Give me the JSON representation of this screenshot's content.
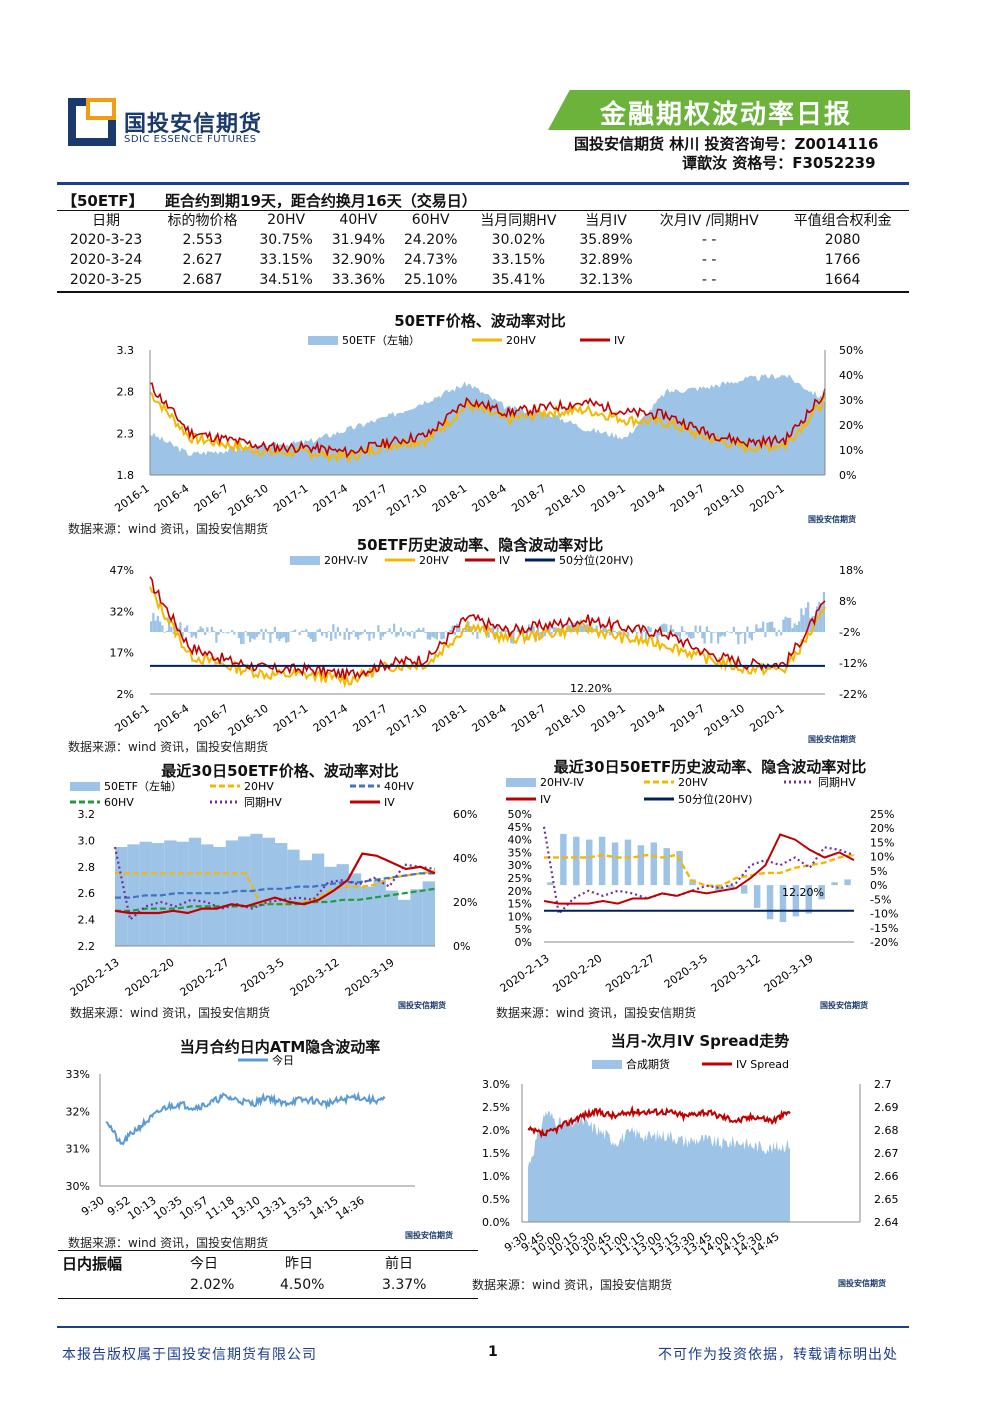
{
  "header": {
    "logo_cn": "国投安信期货",
    "logo_en": "SDIC ESSENCE FUTURES",
    "title": "金融期权波动率日报",
    "author_line1": "国投安信期货  林川  投资咨询号：Z0014116",
    "author_line2": "谭歆汝      资格号：F3052239"
  },
  "etf_table": {
    "tag": "【50ETF】",
    "subtitle": "距合约到期19天，距合约换月16天（交易日）",
    "columns": [
      "日期",
      "标的物价格",
      "20HV",
      "40HV",
      "60HV",
      "当月同期HV",
      "当月IV",
      "次月IV /同期HV",
      "平值组合权利金"
    ],
    "rows": [
      [
        "2020-3-23",
        "2.553",
        "30.75%",
        "31.94%",
        "24.20%",
        "30.02%",
        "35.89%",
        "-      -",
        "2080"
      ],
      [
        "2020-3-24",
        "2.627",
        "33.15%",
        "32.90%",
        "24.73%",
        "33.15%",
        "32.89%",
        "-      -",
        "1766"
      ],
      [
        "2020-3-25",
        "2.687",
        "34.51%",
        "33.36%",
        "25.10%",
        "35.41%",
        "32.13%",
        "-      -",
        "1664"
      ]
    ]
  },
  "colors": {
    "bar": "#9dc3e6",
    "orange": "#f5b800",
    "red": "#c00000",
    "navy": "#002060",
    "blue": "#4472c4",
    "green": "#1f9d3a",
    "purple": "#7030a0",
    "banner": "#6bb33a"
  },
  "source_text": "数据来源：wind 资讯，国投安信期货",
  "charts": {
    "c1": {
      "title": "50ETF价格、波动率对比",
      "legend": [
        "50ETF（左轴）",
        "20HV",
        "IV"
      ],
      "yleft": [
        "3.3",
        "2.8",
        "2.3",
        "1.8"
      ],
      "yright": [
        "50%",
        "40%",
        "30%",
        "20%",
        "10%",
        "0%"
      ],
      "xticks": [
        "2016-1",
        "2016-4",
        "2016-7",
        "2016-10",
        "2017-1",
        "2017-4",
        "2017-7",
        "2017-10",
        "2018-1",
        "2018-4",
        "2018-7",
        "2018-10",
        "2019-1",
        "2019-4",
        "2019-7",
        "2019-10",
        "2020-1"
      ]
    },
    "c2": {
      "title": "50ETF历史波动率、隐含波动率对比",
      "legend": [
        "20HV-IV",
        "20HV",
        "IV",
        "50分位(20HV)"
      ],
      "yleft": [
        "47%",
        "32%",
        "17%",
        "2%"
      ],
      "yright": [
        "18%",
        "8%",
        "-2%",
        "-12%",
        "-22%"
      ],
      "annotation": "12.20%",
      "xticks": [
        "2016-1",
        "2016-4",
        "2016-7",
        "2016-10",
        "2017-1",
        "2017-4",
        "2017-7",
        "2017-10",
        "2018-1",
        "2018-4",
        "2018-7",
        "2018-10",
        "2019-1",
        "2019-4",
        "2019-7",
        "2019-10",
        "2020-1"
      ]
    },
    "c3": {
      "title": "最近30日50ETF价格、波动率对比",
      "legend": [
        "50ETF（左轴）",
        "20HV",
        "40HV",
        "60HV",
        "同期HV",
        "IV"
      ],
      "yleft": [
        "3.2",
        "3.0",
        "2.8",
        "2.6",
        "2.4",
        "2.2"
      ],
      "yright": [
        "60%",
        "40%",
        "20%",
        "0%"
      ],
      "xticks": [
        "2020-2-13",
        "2020-2-20",
        "2020-2-27",
        "2020-3-5",
        "2020-3-12",
        "2020-3-19"
      ]
    },
    "c4": {
      "title": "最近30日50ETF历史波动率、隐含波动率对比",
      "legend": [
        "20HV-IV",
        "20HV",
        "同期HV",
        "IV",
        "50分位(20HV)"
      ],
      "yleft": [
        "50%",
        "45%",
        "40%",
        "35%",
        "30%",
        "25%",
        "20%",
        "15%",
        "10%",
        "5%",
        "0%"
      ],
      "yright": [
        "25%",
        "20%",
        "15%",
        "10%",
        "5%",
        "0%",
        "-5%",
        "-10%",
        "-15%",
        "-20%"
      ],
      "annotation": "12.20%",
      "xticks": [
        "2020-2-13",
        "2020-2-20",
        "2020-2-27",
        "2020-3-5",
        "2020-3-12",
        "2020-3-19"
      ]
    },
    "c5": {
      "title": "当月合约日内ATM隐含波动率",
      "legend": [
        "今日"
      ],
      "yleft": [
        "33%",
        "32%",
        "31%",
        "30%"
      ],
      "xticks": [
        "9:30",
        "9:52",
        "10:13",
        "10:35",
        "10:57",
        "11:18",
        "13:10",
        "13:31",
        "13:53",
        "14:15",
        "14:36"
      ]
    },
    "c6": {
      "title": "当月-次月IV Spread走势",
      "legend": [
        "合成期货",
        "IV Spread"
      ],
      "yleft": [
        "3.0%",
        "2.5%",
        "2.0%",
        "1.5%",
        "1.0%",
        "0.5%",
        "0.0%"
      ],
      "yright": [
        "2.7",
        "2.69",
        "2.68",
        "2.67",
        "2.66",
        "2.65",
        "2.64"
      ],
      "xticks": [
        "9:30",
        "9:45",
        "10:00",
        "10:15",
        "10:30",
        "10:45",
        "11:00",
        "11:15",
        "13:00",
        "13:15",
        "13:30",
        "13:45",
        "14:00",
        "14:15",
        "14:30",
        "14:45"
      ]
    }
  },
  "chart_data": [
    {
      "type": "line",
      "title": "50ETF价格、波动率对比",
      "series": [
        {
          "name": "50ETF（左轴）",
          "values": [
            2.35,
            2.05,
            2.1,
            2.2,
            2.25,
            2.3,
            2.4,
            2.75,
            2.9,
            2.6,
            2.5,
            2.3,
            2.2,
            2.8,
            2.9,
            2.95,
            3.0
          ]
        },
        {
          "name": "20HV",
          "values": [
            0.33,
            0.14,
            0.12,
            0.1,
            0.09,
            0.08,
            0.12,
            0.14,
            0.28,
            0.22,
            0.24,
            0.27,
            0.23,
            0.22,
            0.16,
            0.12,
            0.28
          ]
        },
        {
          "name": "IV",
          "values": [
            0.36,
            0.17,
            0.14,
            0.12,
            0.11,
            0.1,
            0.14,
            0.16,
            0.3,
            0.25,
            0.26,
            0.3,
            0.25,
            0.24,
            0.18,
            0.14,
            0.32
          ]
        }
      ],
      "categories": [
        "2016-1",
        "2016-4",
        "2016-7",
        "2016-10",
        "2017-1",
        "2017-4",
        "2017-7",
        "2017-10",
        "2018-1",
        "2018-4",
        "2018-7",
        "2018-10",
        "2019-1",
        "2019-4",
        "2019-7",
        "2019-10",
        "2020-1"
      ]
    },
    {
      "type": "line",
      "title": "50ETF历史波动率、隐含波动率对比",
      "series": [
        {
          "name": "20HV",
          "values": [
            0.4,
            0.16,
            0.12,
            0.1,
            0.09,
            0.08,
            0.12,
            0.13,
            0.27,
            0.22,
            0.23,
            0.26,
            0.22,
            0.2,
            0.15,
            0.11,
            0.3
          ]
        },
        {
          "name": "IV",
          "values": [
            0.43,
            0.19,
            0.14,
            0.12,
            0.11,
            0.1,
            0.13,
            0.15,
            0.3,
            0.25,
            0.26,
            0.3,
            0.26,
            0.24,
            0.18,
            0.13,
            0.33
          ]
        },
        {
          "name": "50分位(20HV)",
          "values": [
            0.122
          ]
        }
      ]
    },
    {
      "type": "line",
      "title": "最近30日50ETF价格、波动率对比",
      "categories": [
        "2020-2-13",
        "2020-2-20",
        "2020-2-27",
        "2020-3-5",
        "2020-3-12",
        "2020-3-19"
      ],
      "series": [
        {
          "name": "50ETF（左轴）",
          "values": [
            2.95,
            2.98,
            2.95,
            3.05,
            2.85,
            2.65
          ]
        },
        {
          "name": "20HV",
          "values": [
            0.33,
            0.33,
            0.18,
            0.19,
            0.27,
            0.34
          ]
        },
        {
          "name": "IV",
          "values": [
            0.16,
            0.17,
            0.2,
            0.22,
            0.42,
            0.34
          ]
        }
      ]
    },
    {
      "type": "bar",
      "title": "最近30日50ETF历史波动率、隐含波动率对比",
      "categories": [
        "2020-2-13",
        "2020-2-20",
        "2020-2-27",
        "2020-3-5",
        "2020-3-12",
        "2020-3-19"
      ],
      "series": [
        {
          "name": "20HV",
          "values": [
            0.33,
            0.33,
            0.33,
            0.22,
            0.27,
            0.34
          ]
        },
        {
          "name": "IV",
          "values": [
            0.15,
            0.14,
            0.2,
            0.21,
            0.42,
            0.33
          ]
        }
      ]
    },
    {
      "type": "line",
      "title": "当月合约日内ATM隐含波动率",
      "series": [
        {
          "name": "今日",
          "values": [
            0.318,
            0.315,
            0.321,
            0.322,
            0.322,
            0.323,
            0.322,
            0.323,
            0.322,
            0.323,
            0.323
          ]
        }
      ]
    },
    {
      "type": "area",
      "title": "当月-次月IV Spread走势",
      "series": [
        {
          "name": "IV Spread",
          "values": [
            0.02,
            0.021,
            0.022,
            0.024,
            0.024,
            0.023,
            0.024,
            0.023,
            0.024,
            0.024,
            0.023,
            0.023,
            0.022,
            0.023,
            0.024,
            0.024
          ]
        }
      ]
    }
  ],
  "intraday": {
    "label": "日内振幅",
    "cols": [
      "今日",
      "昨日",
      "前日"
    ],
    "vals": [
      "2.02%",
      "4.50%",
      "3.37%"
    ]
  },
  "footer": {
    "left": "本报告版权属于国投安信期货有限公司",
    "page": "1",
    "right": "不可作为投资依据，转载请标明出处"
  }
}
